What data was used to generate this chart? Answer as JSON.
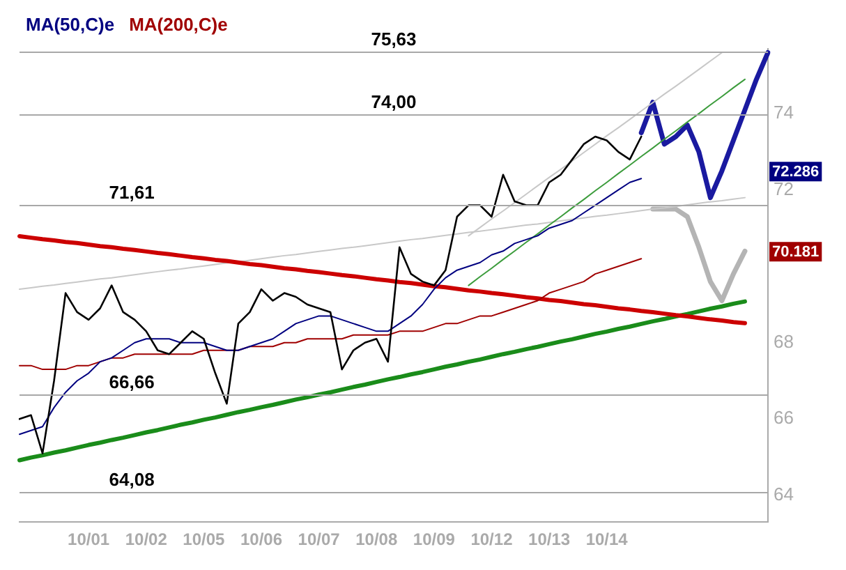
{
  "chart_data": {
    "type": "line",
    "legend": "top left",
    "grid": false,
    "marker": "none",
    "line_style": "solid",
    "categories": [
      null,
      null,
      null,
      null,
      null,
      null,
      "10/01",
      null,
      null,
      null,
      null,
      "10/02",
      null,
      null,
      null,
      null,
      "10/05",
      null,
      null,
      null,
      null,
      "10/06",
      null,
      null,
      null,
      null,
      "10/07",
      null,
      null,
      null,
      null,
      "10/08",
      null,
      null,
      null,
      null,
      "10/09",
      null,
      null,
      null,
      null,
      "10/12",
      null,
      null,
      null,
      null,
      "10/13",
      null,
      null,
      null,
      null,
      "10/14",
      null,
      null,
      null,
      null,
      null,
      null,
      null,
      null,
      null,
      null,
      null,
      null,
      null,
      null
    ],
    "ylim": [
      63.3,
      75.7
    ],
    "yticks": [
      64,
      66,
      68,
      72,
      74
    ],
    "ref_lines": [
      {
        "axis": "y",
        "value": 75.63,
        "label": "75,63",
        "color": "#a8a8a8"
      },
      {
        "axis": "y",
        "value": 74.0,
        "label": "74,00",
        "color": "#a8a8a8"
      },
      {
        "axis": "y",
        "value": 71.61,
        "label": "71,61",
        "color": "#a8a8a8"
      },
      {
        "axis": "y",
        "value": 66.66,
        "label": "66,66",
        "color": "#a8a8a8"
      },
      {
        "axis": "y",
        "value": 64.08,
        "label": "64,08",
        "color": "#a8a8a8"
      }
    ],
    "annotations": [
      "72.286",
      "70.181"
    ],
    "series": [
      {
        "color": "#000000",
        "values": [
          66.0,
          66.1,
          65.1,
          67.0,
          69.3,
          68.8,
          68.6,
          68.9,
          69.5,
          68.8,
          68.6,
          68.3,
          67.8,
          67.7,
          68.0,
          68.3,
          68.1,
          67.2,
          66.4,
          68.5,
          68.8,
          69.4,
          69.1,
          69.3,
          69.2,
          69.0,
          68.9,
          68.8,
          67.3,
          67.8,
          68.0,
          68.1,
          67.5,
          70.5,
          69.8,
          69.6,
          69.5,
          69.9,
          71.3,
          71.6,
          71.6,
          71.3,
          72.4,
          71.7,
          71.6,
          71.6,
          72.2,
          72.4,
          72.8,
          73.2,
          73.4,
          73.3,
          73.0,
          72.8,
          73.4,
          null,
          null,
          null,
          null,
          null,
          null,
          null,
          null,
          null,
          null,
          null
        ]
      },
      {
        "name": "MA(50,C)e",
        "color": "#000080",
        "values": [
          65.6,
          65.7,
          65.8,
          66.3,
          66.7,
          67.0,
          67.2,
          67.5,
          67.6,
          67.8,
          68.0,
          68.1,
          68.1,
          68.1,
          68.0,
          68.0,
          68.0,
          67.9,
          67.8,
          67.8,
          67.9,
          68.0,
          68.1,
          68.3,
          68.5,
          68.6,
          68.7,
          68.7,
          68.6,
          68.5,
          68.4,
          68.3,
          68.3,
          68.5,
          68.7,
          69.0,
          69.4,
          69.7,
          69.9,
          70.0,
          70.1,
          70.3,
          70.4,
          70.6,
          70.7,
          70.8,
          71.0,
          71.1,
          71.2,
          71.4,
          71.6,
          71.8,
          72.0,
          72.2,
          72.3,
          null,
          null,
          null,
          null,
          null,
          null,
          null,
          null,
          null,
          null,
          null
        ]
      },
      {
        "name": "MA(200,C)e",
        "color": "#a00000",
        "values": [
          67.4,
          67.4,
          67.3,
          67.3,
          67.3,
          67.4,
          67.4,
          67.5,
          67.6,
          67.6,
          67.7,
          67.7,
          67.7,
          67.7,
          67.7,
          67.7,
          67.8,
          67.8,
          67.8,
          67.8,
          67.9,
          67.9,
          67.9,
          68.0,
          68.0,
          68.1,
          68.1,
          68.1,
          68.1,
          68.2,
          68.2,
          68.2,
          68.2,
          68.3,
          68.3,
          68.3,
          68.4,
          68.5,
          68.5,
          68.6,
          68.7,
          68.7,
          68.8,
          68.9,
          69.0,
          69.1,
          69.3,
          69.4,
          69.5,
          69.6,
          69.8,
          69.9,
          70.0,
          70.1,
          70.2,
          null,
          null,
          null,
          null,
          null,
          null,
          null,
          null,
          null,
          null,
          null
        ]
      },
      {
        "color": "#cc0000",
        "values": [
          70.79,
          70.75,
          70.71,
          70.68,
          70.64,
          70.61,
          70.57,
          70.53,
          70.5,
          70.46,
          70.43,
          70.39,
          70.35,
          70.32,
          70.28,
          70.24,
          70.21,
          70.17,
          70.14,
          70.1,
          70.06,
          70.03,
          69.99,
          69.95,
          69.92,
          69.88,
          69.85,
          69.81,
          69.77,
          69.74,
          69.7,
          69.66,
          69.63,
          69.59,
          69.56,
          69.52,
          69.48,
          69.45,
          69.41,
          69.37,
          69.34,
          69.3,
          69.27,
          69.23,
          69.19,
          69.16,
          69.12,
          69.09,
          69.05,
          69.01,
          68.98,
          68.94,
          68.9,
          68.87,
          68.83,
          68.8,
          68.76,
          68.72,
          68.69,
          68.65,
          68.61,
          68.58,
          68.54,
          68.51,
          null,
          null
        ]
      },
      {
        "color": "#1a8c1a",
        "values": [
          64.92,
          64.99,
          65.05,
          65.12,
          65.18,
          65.25,
          65.32,
          65.38,
          65.45,
          65.51,
          65.58,
          65.65,
          65.71,
          65.78,
          65.85,
          65.91,
          65.98,
          66.04,
          66.11,
          66.18,
          66.24,
          66.31,
          66.37,
          66.44,
          66.51,
          66.57,
          66.64,
          66.7,
          66.77,
          66.84,
          66.9,
          66.97,
          67.04,
          67.1,
          67.17,
          67.23,
          67.3,
          67.37,
          67.43,
          67.5,
          67.56,
          67.63,
          67.7,
          67.76,
          67.83,
          67.89,
          67.96,
          68.03,
          68.09,
          68.16,
          68.23,
          68.29,
          68.36,
          68.42,
          68.49,
          68.56,
          68.62,
          68.69,
          68.75,
          68.82,
          68.89,
          68.95,
          69.02,
          69.08,
          null,
          null
        ]
      },
      {
        "color": "#3c9c3c",
        "values": [
          null,
          null,
          null,
          null,
          null,
          null,
          null,
          null,
          null,
          null,
          null,
          null,
          null,
          null,
          null,
          null,
          null,
          null,
          null,
          null,
          null,
          null,
          null,
          null,
          null,
          null,
          null,
          null,
          null,
          null,
          null,
          null,
          null,
          null,
          null,
          null,
          null,
          null,
          null,
          69.5,
          69.73,
          69.95,
          70.18,
          70.4,
          70.63,
          70.85,
          71.08,
          71.3,
          71.53,
          71.75,
          71.98,
          72.2,
          72.43,
          72.65,
          72.88,
          73.1,
          73.33,
          73.55,
          73.78,
          74.0,
          74.23,
          74.45,
          74.68,
          74.9,
          null,
          null
        ]
      },
      {
        "color": "#c8c8c8",
        "values": [
          69.4,
          69.44,
          69.48,
          69.51,
          69.55,
          69.59,
          69.63,
          69.67,
          69.7,
          69.74,
          69.78,
          69.82,
          69.86,
          69.9,
          69.93,
          69.97,
          70.01,
          70.05,
          70.09,
          70.12,
          70.16,
          70.2,
          70.24,
          70.28,
          70.31,
          70.35,
          70.39,
          70.43,
          70.47,
          70.5,
          70.54,
          70.58,
          70.62,
          70.66,
          70.7,
          70.73,
          70.77,
          70.81,
          70.85,
          70.89,
          70.92,
          70.96,
          71.0,
          71.04,
          71.08,
          71.11,
          71.15,
          71.19,
          71.23,
          71.27,
          71.31,
          71.34,
          71.38,
          71.42,
          71.46,
          71.5,
          71.53,
          71.57,
          71.61,
          71.65,
          71.69,
          71.72,
          71.76,
          71.8,
          null,
          null
        ]
      },
      {
        "color": "#c8c8c8",
        "values": [
          null,
          null,
          null,
          null,
          null,
          null,
          null,
          null,
          null,
          null,
          null,
          null,
          null,
          null,
          null,
          null,
          null,
          null,
          null,
          null,
          null,
          null,
          null,
          null,
          null,
          null,
          null,
          null,
          null,
          null,
          null,
          null,
          null,
          null,
          null,
          null,
          null,
          null,
          null,
          70.8,
          71.02,
          71.24,
          71.45,
          71.67,
          71.89,
          72.11,
          72.33,
          72.54,
          72.76,
          72.98,
          73.2,
          73.42,
          73.63,
          73.85,
          74.07,
          74.29,
          74.51,
          74.72,
          74.94,
          75.16,
          75.38,
          75.6,
          null,
          null,
          null,
          null
        ]
      },
      {
        "color": "#1a1aa0",
        "values": [
          null,
          null,
          null,
          null,
          null,
          null,
          null,
          null,
          null,
          null,
          null,
          null,
          null,
          null,
          null,
          null,
          null,
          null,
          null,
          null,
          null,
          null,
          null,
          null,
          null,
          null,
          null,
          null,
          null,
          null,
          null,
          null,
          null,
          null,
          null,
          null,
          null,
          null,
          null,
          null,
          null,
          null,
          null,
          null,
          null,
          null,
          null,
          null,
          null,
          null,
          null,
          null,
          null,
          null,
          73.5,
          74.3,
          73.2,
          73.4,
          73.7,
          73.0,
          71.8,
          72.5,
          73.3,
          74.1,
          74.9,
          75.6
        ]
      },
      {
        "color": "#b4b4b4",
        "values": [
          null,
          null,
          null,
          null,
          null,
          null,
          null,
          null,
          null,
          null,
          null,
          null,
          null,
          null,
          null,
          null,
          null,
          null,
          null,
          null,
          null,
          null,
          null,
          null,
          null,
          null,
          null,
          null,
          null,
          null,
          null,
          null,
          null,
          null,
          null,
          null,
          null,
          null,
          null,
          null,
          null,
          null,
          null,
          null,
          null,
          null,
          null,
          null,
          null,
          null,
          null,
          null,
          null,
          null,
          null,
          71.5,
          71.5,
          71.5,
          71.3,
          70.5,
          69.6,
          69.1,
          69.8,
          70.4,
          null,
          null
        ]
      }
    ]
  }
}
